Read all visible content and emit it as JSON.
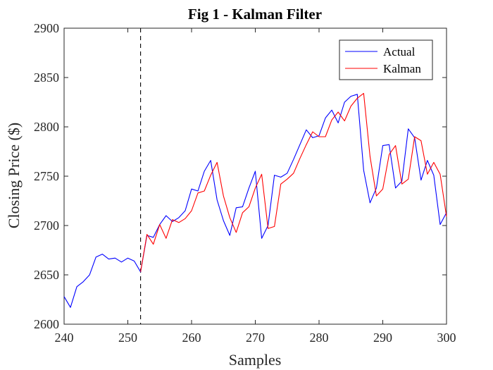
{
  "chart_data": {
    "type": "line",
    "title": "Fig 1 - Kalman Filter",
    "xlabel": "Samples",
    "ylabel": "Closing Price ($)",
    "xlim": [
      240,
      300
    ],
    "ylim": [
      2600,
      2900
    ],
    "xticks": [
      "240",
      "250",
      "260",
      "270",
      "280",
      "290",
      "300"
    ],
    "yticks": [
      "2600",
      "2650",
      "2700",
      "2750",
      "2800",
      "2850",
      "2900"
    ],
    "legend_position": "top-right",
    "grid": false,
    "reference_line_x": 252,
    "series": [
      {
        "name": "Actual",
        "color": "#0000ff",
        "x_start": 240,
        "values": [
          2628,
          2617,
          2638,
          2643,
          2650,
          2668,
          2671,
          2666,
          2667,
          2663,
          2667,
          2664,
          2653,
          2690,
          2688,
          2701,
          2710,
          2704,
          2708,
          2715,
          2737,
          2735,
          2755,
          2766,
          2726,
          2705,
          2690,
          2718,
          2719,
          2738,
          2755,
          2687,
          2700,
          2751,
          2749,
          2753,
          2767,
          2782,
          2797,
          2789,
          2791,
          2809,
          2817,
          2804,
          2825,
          2831,
          2833,
          2756,
          2723,
          2738,
          2781,
          2782,
          2738,
          2745,
          2798,
          2789,
          2746,
          2766,
          2751,
          2701,
          2713
        ]
      },
      {
        "name": "Kalman",
        "color": "#ff0000",
        "x_start": 252,
        "values": [
          2653,
          2691,
          2681,
          2701,
          2687,
          2706,
          2703,
          2707,
          2715,
          2733,
          2735,
          2751,
          2764,
          2730,
          2708,
          2693,
          2713,
          2719,
          2738,
          2752,
          2697,
          2699,
          2742,
          2747,
          2753,
          2768,
          2782,
          2795,
          2790,
          2790,
          2807,
          2815,
          2806,
          2821,
          2829,
          2834,
          2770,
          2730,
          2737,
          2772,
          2781,
          2742,
          2747,
          2790,
          2786,
          2752,
          2764,
          2752,
          2709
        ]
      }
    ]
  }
}
